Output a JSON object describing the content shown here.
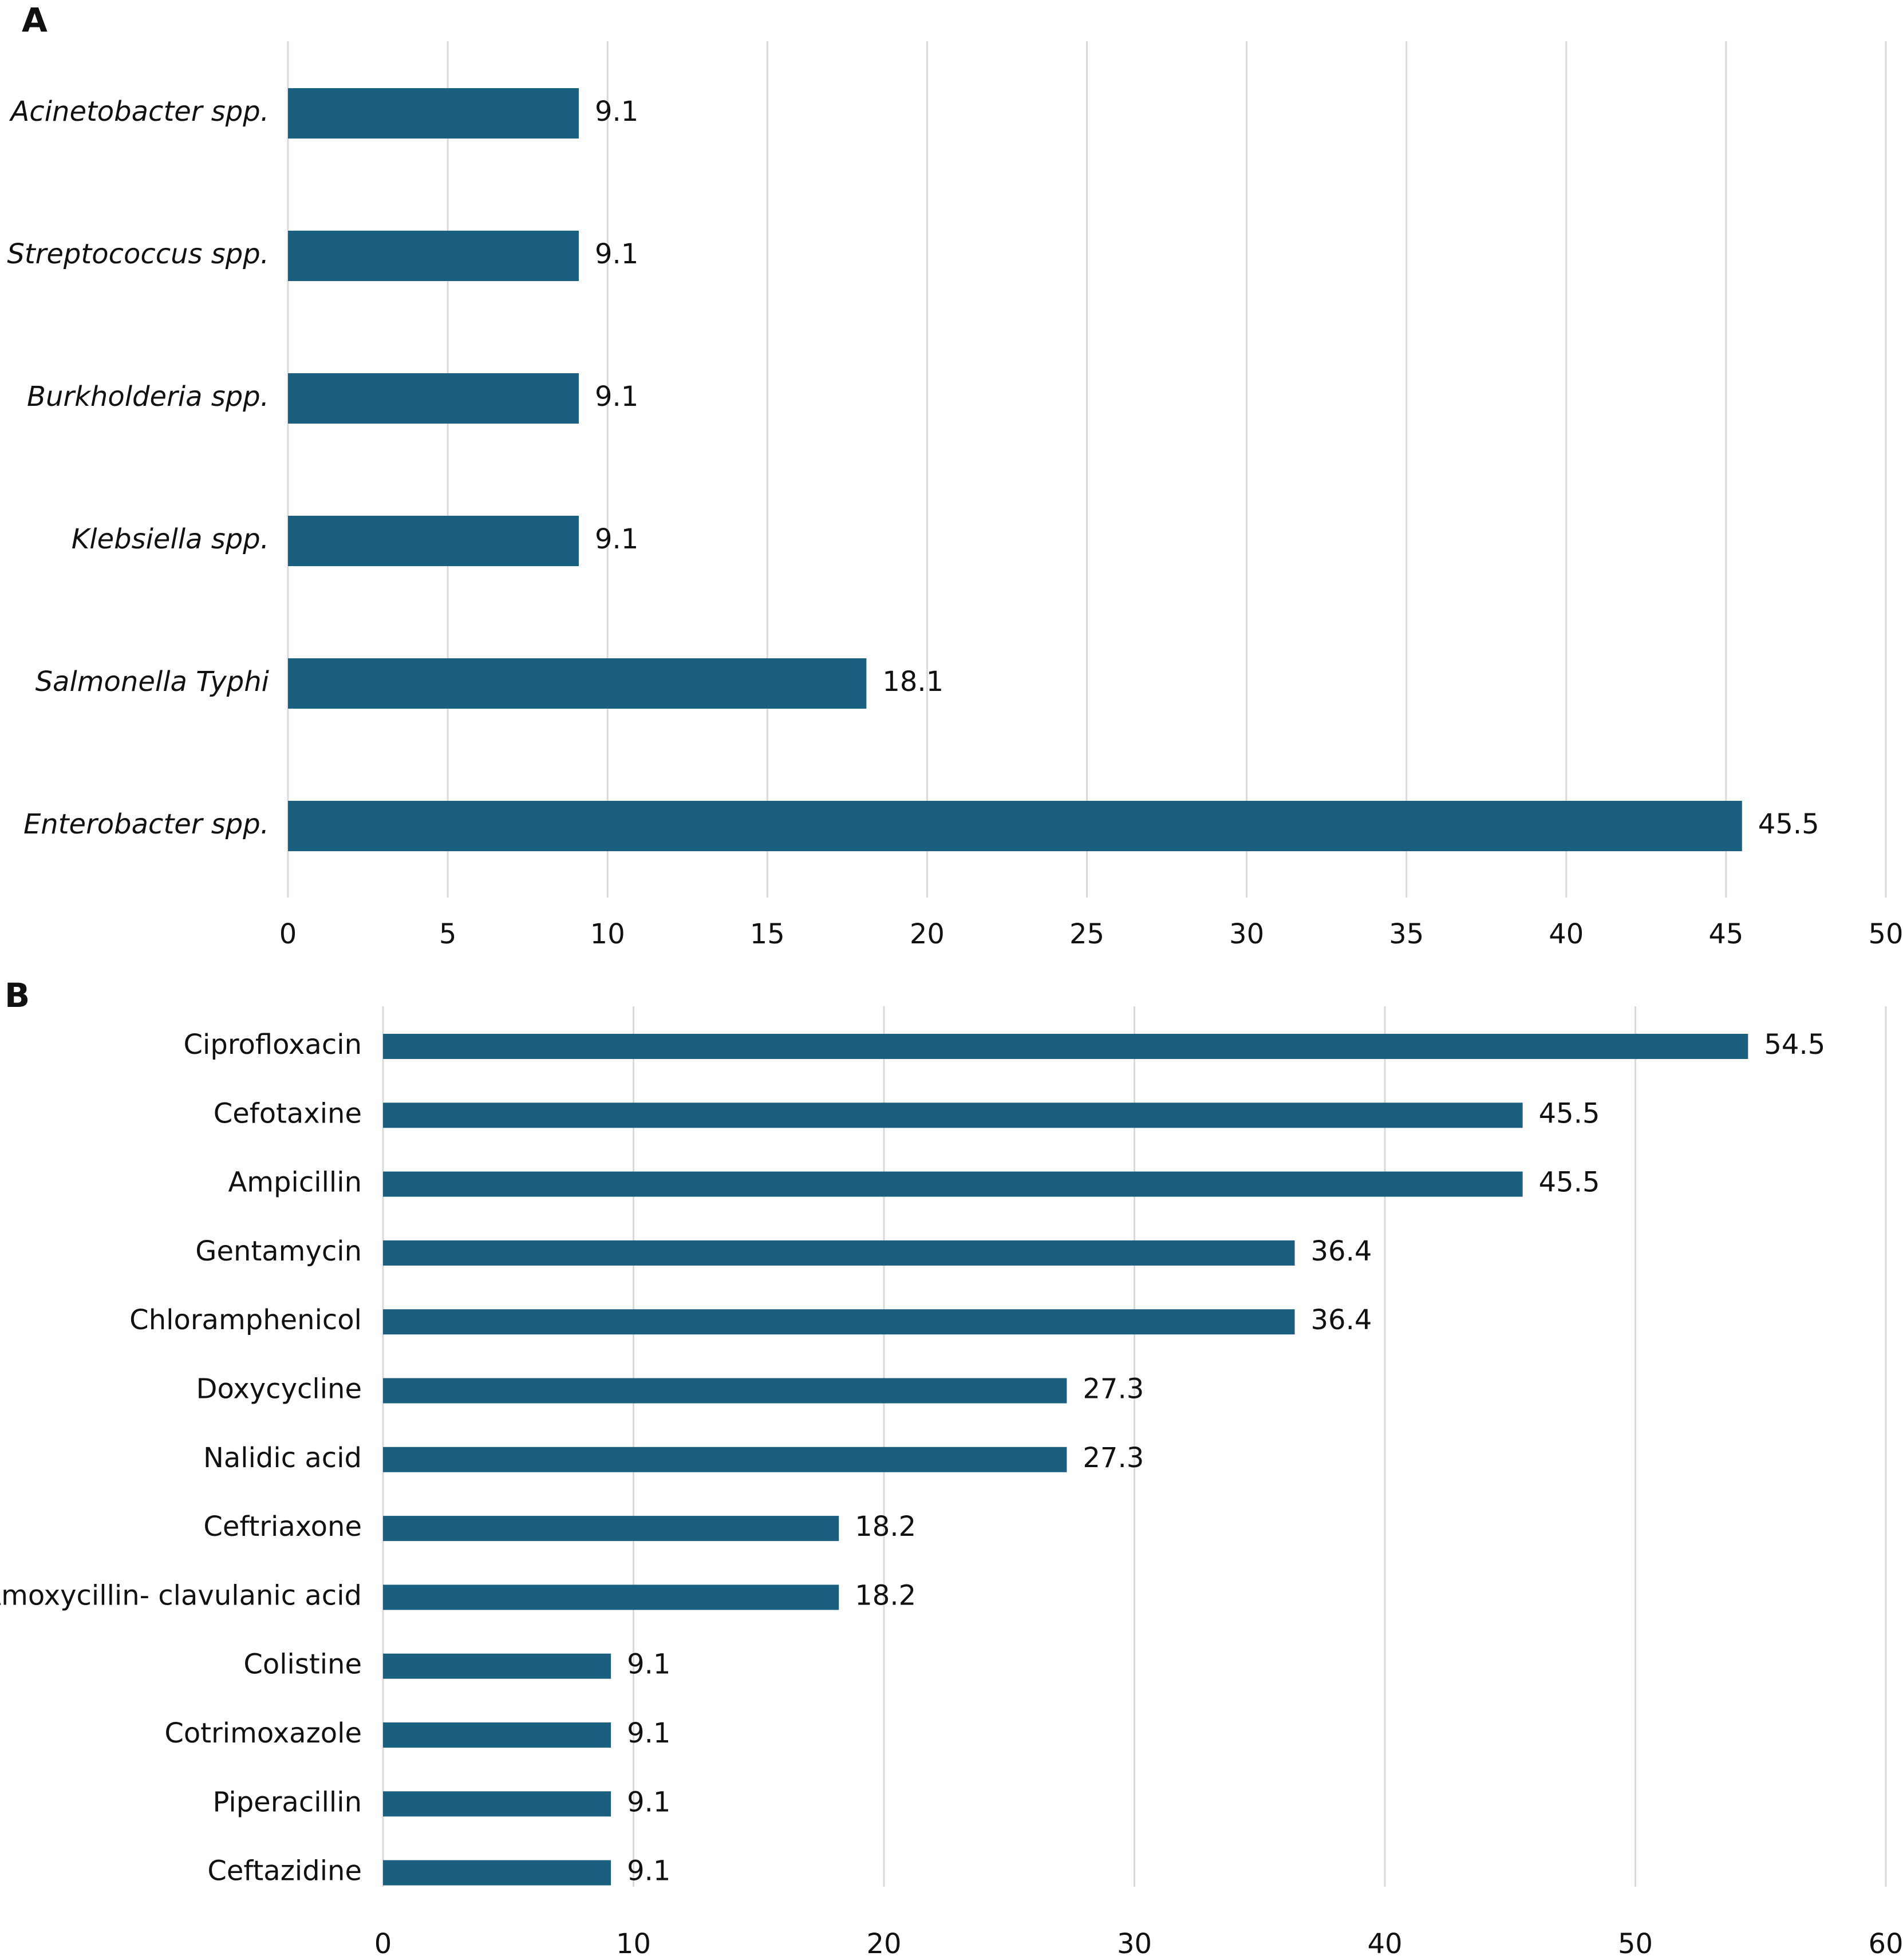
{
  "panels": [
    {
      "letter": "A"
    },
    {
      "letter": "B"
    }
  ],
  "chart_data": [
    {
      "type": "bar",
      "orientation": "horizontal",
      "categories": [
        "Acinetobacter spp.",
        "Streptococcus spp.",
        "Burkholderia spp.",
        "Klebsiella spp.",
        "Salmonella Typhi",
        "Enterobacter spp."
      ],
      "values": [
        9.1,
        9.1,
        9.1,
        9.1,
        18.1,
        45.5
      ],
      "data_labels": [
        "9.1",
        "9.1",
        "9.1",
        "9.1",
        "18.1",
        "45.5"
      ],
      "xlim": [
        0,
        50
      ],
      "xticks": [
        "0",
        "5",
        "10",
        "15",
        "20",
        "25",
        "30",
        "35",
        "40",
        "45",
        "50"
      ],
      "category_labels_italic": true,
      "grid": true,
      "bar_color": "#1a5f80"
    },
    {
      "type": "bar",
      "orientation": "horizontal",
      "categories": [
        "Ciprofloxacin",
        "Cefotaxine",
        "Ampicillin",
        "Gentamycin",
        "Chloramphenicol",
        "Doxycycline",
        "Nalidic acid",
        "Ceftriaxone",
        "Amoxycillin- clavulanic acid",
        "Colistine",
        "Cotrimoxazole",
        "Piperacillin",
        "Ceftazidine"
      ],
      "values": [
        54.5,
        45.5,
        45.5,
        36.4,
        36.4,
        27.3,
        27.3,
        18.2,
        18.2,
        9.1,
        9.1,
        9.1,
        9.1
      ],
      "data_labels": [
        "54.5",
        "45.5",
        "45.5",
        "36.4",
        "36.4",
        "27.3",
        "27.3",
        "18.2",
        "18.2",
        "9.1",
        "9.1",
        "9.1",
        "9.1"
      ],
      "xlim": [
        0,
        60
      ],
      "xticks": [
        "0",
        "10",
        "20",
        "30",
        "40",
        "50",
        "60"
      ],
      "category_labels_italic": false,
      "grid": true,
      "bar_color": "#1a5f80"
    }
  ]
}
